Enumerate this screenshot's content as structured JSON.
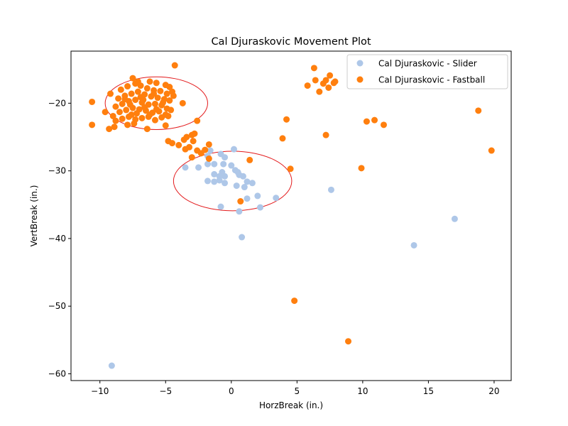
{
  "chart_data": {
    "type": "scatter",
    "title": "Cal Djuraskovic Movement Plot",
    "xlabel": "HorzBreak (in.)",
    "ylabel": "VertBreak (in.)",
    "xlim": [
      -12.2,
      21.3
    ],
    "ylim": [
      -61.0,
      -12.3
    ],
    "xticks": [
      -10,
      -5,
      0,
      5,
      10,
      15,
      20
    ],
    "yticks": [
      -60,
      -50,
      -40,
      -30,
      -20
    ],
    "grid": false,
    "legend_position": "top-right",
    "series": [
      {
        "name": "Cal Djuraskovic - Slider",
        "color": "#aec7e8",
        "points": [
          [
            -9.1,
            -58.8
          ],
          [
            13.9,
            -41.0
          ],
          [
            17.0,
            -37.1
          ],
          [
            7.6,
            -32.8
          ],
          [
            0.2,
            -26.8
          ],
          [
            -1.6,
            -27.0
          ],
          [
            -1.8,
            -27.8
          ],
          [
            -0.8,
            -27.5
          ],
          [
            -0.5,
            -28.0
          ],
          [
            -1.8,
            -29.0
          ],
          [
            -0.6,
            -29.0
          ],
          [
            0.0,
            -29.2
          ],
          [
            -3.5,
            -29.5
          ],
          [
            -2.5,
            -29.5
          ],
          [
            -1.3,
            -29.0
          ],
          [
            0.3,
            -29.9
          ],
          [
            0.5,
            -30.2
          ],
          [
            -1.3,
            -30.5
          ],
          [
            -0.7,
            -30.2
          ],
          [
            -0.9,
            -30.8
          ],
          [
            -0.5,
            -30.8
          ],
          [
            0.6,
            -30.6
          ],
          [
            0.9,
            -30.8
          ],
          [
            -1.8,
            -31.5
          ],
          [
            -1.3,
            -31.6
          ],
          [
            -0.9,
            -31.4
          ],
          [
            -0.5,
            -31.8
          ],
          [
            1.2,
            -31.6
          ],
          [
            1.6,
            -31.8
          ],
          [
            0.4,
            -32.2
          ],
          [
            1.0,
            -32.4
          ],
          [
            1.2,
            -34.1
          ],
          [
            2.0,
            -33.7
          ],
          [
            3.4,
            -34.0
          ],
          [
            -0.8,
            -35.3
          ],
          [
            0.6,
            -36.0
          ],
          [
            2.2,
            -35.4
          ],
          [
            0.8,
            -39.8
          ]
        ]
      },
      {
        "name": "Cal Djuraskovic - Fastball",
        "color": "#ff7f0e",
        "points": [
          [
            -4.3,
            -14.4
          ],
          [
            -10.6,
            -19.8
          ],
          [
            -10.6,
            -23.2
          ],
          [
            -9.3,
            -23.8
          ],
          [
            -8.9,
            -23.5
          ],
          [
            -7.5,
            -16.3
          ],
          [
            -7.1,
            -16.8
          ],
          [
            -6.2,
            -16.8
          ],
          [
            -5.7,
            -17.0
          ],
          [
            -5.0,
            -17.3
          ],
          [
            -4.7,
            -17.6
          ],
          [
            -4.5,
            -18.3
          ],
          [
            -9.2,
            -18.6
          ],
          [
            -8.4,
            -18.0
          ],
          [
            -7.9,
            -17.5
          ],
          [
            -7.3,
            -17.1
          ],
          [
            -6.9,
            -17.4
          ],
          [
            -6.4,
            -17.8
          ],
          [
            -5.9,
            -18.1
          ],
          [
            -5.4,
            -18.2
          ],
          [
            -4.9,
            -18.6
          ],
          [
            -4.4,
            -18.9
          ],
          [
            -8.6,
            -19.3
          ],
          [
            -8.1,
            -18.9
          ],
          [
            -7.6,
            -18.6
          ],
          [
            -7.1,
            -18.3
          ],
          [
            -6.6,
            -18.7
          ],
          [
            -6.1,
            -19.0
          ],
          [
            -5.6,
            -19.2
          ],
          [
            -5.1,
            -19.4
          ],
          [
            -4.7,
            -19.6
          ],
          [
            -9.6,
            -21.3
          ],
          [
            -8.8,
            -20.5
          ],
          [
            -8.3,
            -20.1
          ],
          [
            -7.8,
            -19.7
          ],
          [
            -7.3,
            -19.5
          ],
          [
            -6.8,
            -19.9
          ],
          [
            -6.3,
            -20.2
          ],
          [
            -5.8,
            -20.1
          ],
          [
            -5.3,
            -20.3
          ],
          [
            -4.9,
            -20.8
          ],
          [
            -3.7,
            -20.0
          ],
          [
            -9.0,
            -21.9
          ],
          [
            -8.5,
            -21.3
          ],
          [
            -8.0,
            -21.0
          ],
          [
            -7.5,
            -20.7
          ],
          [
            -7.0,
            -20.9
          ],
          [
            -6.5,
            -21.1
          ],
          [
            -6.0,
            -21.4
          ],
          [
            -5.5,
            -21.2
          ],
          [
            -5.0,
            -21.7
          ],
          [
            -4.6,
            -21.0
          ],
          [
            -8.8,
            -22.6
          ],
          [
            -8.3,
            -22.3
          ],
          [
            -7.8,
            -22.0
          ],
          [
            -7.3,
            -22.4
          ],
          [
            -6.8,
            -22.2
          ],
          [
            -6.3,
            -22.0
          ],
          [
            -5.8,
            -22.5
          ],
          [
            -5.3,
            -22.1
          ],
          [
            -4.8,
            -21.9
          ],
          [
            -7.9,
            -23.2
          ],
          [
            -7.4,
            -23.0
          ],
          [
            -6.4,
            -23.8
          ],
          [
            -5.0,
            -23.3
          ],
          [
            -5.9,
            -18.6
          ],
          [
            -6.9,
            -19.1
          ],
          [
            -7.7,
            -20.2
          ],
          [
            -6.6,
            -20.6
          ],
          [
            -5.7,
            -20.9
          ],
          [
            -7.2,
            -21.5
          ],
          [
            -6.2,
            -21.7
          ],
          [
            -8.1,
            -19.4
          ],
          [
            -7.6,
            -21.7
          ],
          [
            -6.7,
            -19.5
          ],
          [
            -5.2,
            -19.9
          ],
          [
            -4.8,
            -25.6
          ],
          [
            -4.5,
            -25.9
          ],
          [
            -4.0,
            -26.2
          ],
          [
            -3.6,
            -25.4
          ],
          [
            -3.4,
            -25.0
          ],
          [
            -3.2,
            -26.5
          ],
          [
            -3.5,
            -26.8
          ],
          [
            -2.9,
            -25.6
          ],
          [
            -2.8,
            -24.5
          ],
          [
            -3.0,
            -24.7
          ],
          [
            -2.6,
            -27.0
          ],
          [
            -2.3,
            -27.4
          ],
          [
            -2.0,
            -26.9
          ],
          [
            -3.0,
            -28.0
          ],
          [
            -1.7,
            -26.1
          ],
          [
            -1.7,
            -28.2
          ],
          [
            -2.6,
            -22.6
          ],
          [
            0.7,
            -34.5
          ],
          [
            1.4,
            -28.4
          ],
          [
            3.9,
            -25.2
          ],
          [
            4.2,
            -22.4
          ],
          [
            4.5,
            -29.7
          ],
          [
            4.8,
            -49.2
          ],
          [
            8.9,
            -55.2
          ],
          [
            5.8,
            -17.4
          ],
          [
            6.3,
            -14.8
          ],
          [
            6.4,
            -16.6
          ],
          [
            6.7,
            -18.3
          ],
          [
            7.0,
            -17.1
          ],
          [
            7.2,
            -16.6
          ],
          [
            7.5,
            -15.9
          ],
          [
            7.4,
            -17.7
          ],
          [
            7.9,
            -16.8
          ],
          [
            7.8,
            -17.0
          ],
          [
            7.2,
            -24.7
          ],
          [
            9.9,
            -29.6
          ],
          [
            10.3,
            -22.7
          ],
          [
            10.9,
            -22.5
          ],
          [
            11.6,
            -23.2
          ],
          [
            18.8,
            -21.1
          ],
          [
            19.8,
            -27.0
          ]
        ]
      }
    ],
    "ellipses": [
      {
        "series": "Cal Djuraskovic - Fastball",
        "center": [
          -5.7,
          -20.0
        ],
        "rx": 3.9,
        "ry": 3.9,
        "color": "#e31a1c"
      },
      {
        "series": "Cal Djuraskovic - Slider",
        "center": [
          0.1,
          -31.5
        ],
        "rx": 4.5,
        "ry": 4.4,
        "color": "#e31a1c"
      }
    ]
  }
}
